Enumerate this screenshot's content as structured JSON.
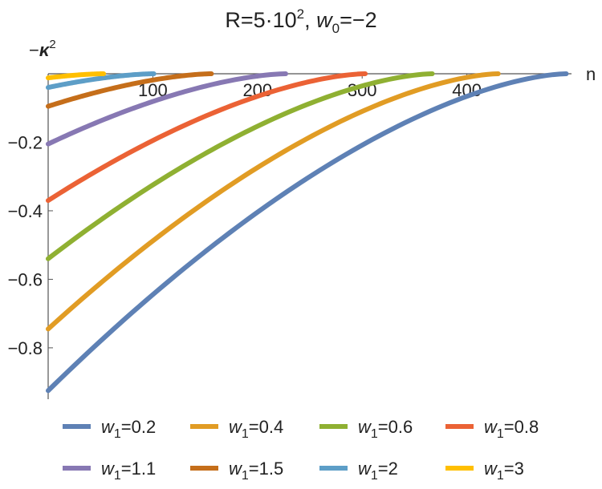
{
  "chart_data": {
    "type": "line",
    "title": "R=5·10², w₀=−2",
    "title_parts": {
      "r": "R=5·10",
      "r_exp": "2",
      "sep": ", ",
      "w": "w",
      "w_sub": "0",
      "w_val": "=−2"
    },
    "xlabel": "n",
    "ylabel_parts": {
      "sign": "−",
      "kappa": "κ",
      "exp": "2"
    },
    "xlim": [
      0,
      500
    ],
    "ylim": [
      -0.95,
      0
    ],
    "x_ticks": [
      100,
      200,
      300,
      400
    ],
    "x_tick_labels": [
      "100",
      "200",
      "300",
      "400"
    ],
    "y_ticks": [
      -0.2,
      -0.4,
      -0.6,
      -0.8
    ],
    "y_tick_labels": [
      "−0.2",
      "−0.4",
      "−0.6",
      "−0.8"
    ],
    "legend_position": "bottom",
    "series": [
      {
        "name": "w1=0.2",
        "legend_label": "=0.2",
        "color": "#5e81b5",
        "n_max": 495,
        "y0": -0.925
      },
      {
        "name": "w1=0.4",
        "legend_label": "=0.4",
        "color": "#e19c24",
        "n_max": 430,
        "y0": -0.745
      },
      {
        "name": "w1=0.6",
        "legend_label": "=0.6",
        "color": "#8fb032",
        "n_max": 367,
        "y0": -0.54
      },
      {
        "name": "w1=0.8",
        "legend_label": "=0.8",
        "color": "#eb6235",
        "n_max": 303,
        "y0": -0.37
      },
      {
        "name": "w1=1.1",
        "legend_label": "=1.1",
        "color": "#8778b3",
        "n_max": 227,
        "y0": -0.205
      },
      {
        "name": "w1=1.5",
        "legend_label": "=1.5",
        "color": "#c56e1a",
        "n_max": 156,
        "y0": -0.095
      },
      {
        "name": "w1=2",
        "legend_label": "=2",
        "color": "#5d9ec7",
        "n_max": 101,
        "y0": -0.04
      },
      {
        "name": "w1=3",
        "legend_label": "=3",
        "color": "#ffbf00",
        "n_max": 53,
        "y0": -0.012
      }
    ],
    "legend_symbol": {
      "w": "w",
      "sub": "1"
    }
  }
}
